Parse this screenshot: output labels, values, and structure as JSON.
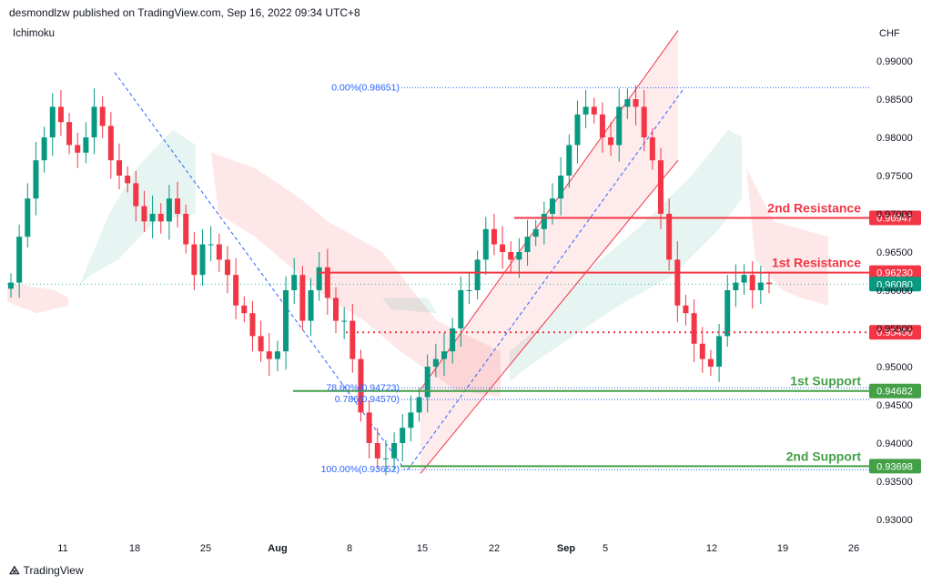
{
  "header": {
    "publisher_line": "desmondlzw published on TradingView.com, Sep 16, 2022 09:34 UTC+8",
    "indicator": "Ichimoku",
    "currency": "CHF",
    "footer_brand": "TradingView"
  },
  "chart_data": {
    "type": "candlestick",
    "instrument_quote_currency": "CHF",
    "ylim": [
      0.9275,
      0.9925
    ],
    "y_ticks": [
      "0.99000",
      "0.98500",
      "0.98000",
      "0.97500",
      "0.97000",
      "0.96500",
      "0.96000",
      "0.95500",
      "0.95000",
      "0.94500",
      "0.94000",
      "0.93500",
      "0.93000"
    ],
    "x_ticks": [
      {
        "label": "11",
        "bold": false
      },
      {
        "label": "18",
        "bold": false
      },
      {
        "label": "25",
        "bold": false
      },
      {
        "label": "Aug",
        "bold": true
      },
      {
        "label": "8",
        "bold": false
      },
      {
        "label": "15",
        "bold": false
      },
      {
        "label": "22",
        "bold": false
      },
      {
        "label": "Sep",
        "bold": true
      },
      {
        "label": "5",
        "bold": false
      },
      {
        "label": "12",
        "bold": false
      },
      {
        "label": "19",
        "bold": false
      },
      {
        "label": "26",
        "bold": false
      }
    ],
    "price_path": [
      0.961,
      0.967,
      0.972,
      0.977,
      0.98,
      0.984,
      0.982,
      0.979,
      0.978,
      0.98,
      0.984,
      0.9815,
      0.977,
      0.975,
      0.974,
      0.971,
      0.969,
      0.97,
      0.969,
      0.972,
      0.97,
      0.966,
      0.962,
      0.966,
      0.966,
      0.964,
      0.962,
      0.958,
      0.957,
      0.954,
      0.952,
      0.951,
      0.952,
      0.96,
      0.962,
      0.956,
      0.96,
      0.963,
      0.959,
      0.956,
      0.956,
      0.951,
      0.944,
      0.94,
      0.938,
      0.938,
      0.94,
      0.942,
      0.944,
      0.946,
      0.95,
      0.951,
      0.952,
      0.955,
      0.96,
      0.96,
      0.964,
      0.968,
      0.966,
      0.965,
      0.964,
      0.965,
      0.967,
      0.968,
      0.97,
      0.972,
      0.975,
      0.979,
      0.983,
      0.984,
      0.983,
      0.98,
      0.979,
      0.984,
      0.985,
      0.984,
      0.98,
      0.977,
      0.97,
      0.964,
      0.958,
      0.957,
      0.953,
      0.951,
      0.95,
      0.954,
      0.96,
      0.961,
      0.962,
      0.96,
      0.961,
      0.9608
    ],
    "current_price": "0.96080",
    "levels": [
      {
        "name": "2nd Resistance",
        "value": 0.96947,
        "label": "0.96947",
        "color": "#f23645",
        "style": "solid"
      },
      {
        "name": "1st Resistance",
        "value": 0.9623,
        "label": "0.96230",
        "color": "#f23645",
        "style": "solid"
      },
      {
        "name": "",
        "value": 0.9545,
        "label": "0.95450",
        "color": "#f23645",
        "style": "dotted"
      },
      {
        "name": "1st Support",
        "value": 0.94682,
        "label": "0.94682",
        "color": "#089981",
        "style": "solid"
      },
      {
        "name": "2nd Support",
        "value": 0.93698,
        "label": "0.93698",
        "color": "#089981",
        "style": "solid"
      }
    ],
    "fib_labels": [
      {
        "text": "0.00%(0.98651)",
        "value": 0.98651
      },
      {
        "text": "78.60%(0.94723)",
        "value": 0.94723
      },
      {
        "text": "0.786(0.94570)",
        "value": 0.9457
      },
      {
        "text": "100.00%(0.93652)",
        "value": 0.93652
      }
    ],
    "colors": {
      "resistance": "#f23645",
      "support": "#43a047",
      "current": "#089981",
      "fib": "#2962ff",
      "candle_up": "#089981",
      "candle_down": "#f23645"
    }
  }
}
